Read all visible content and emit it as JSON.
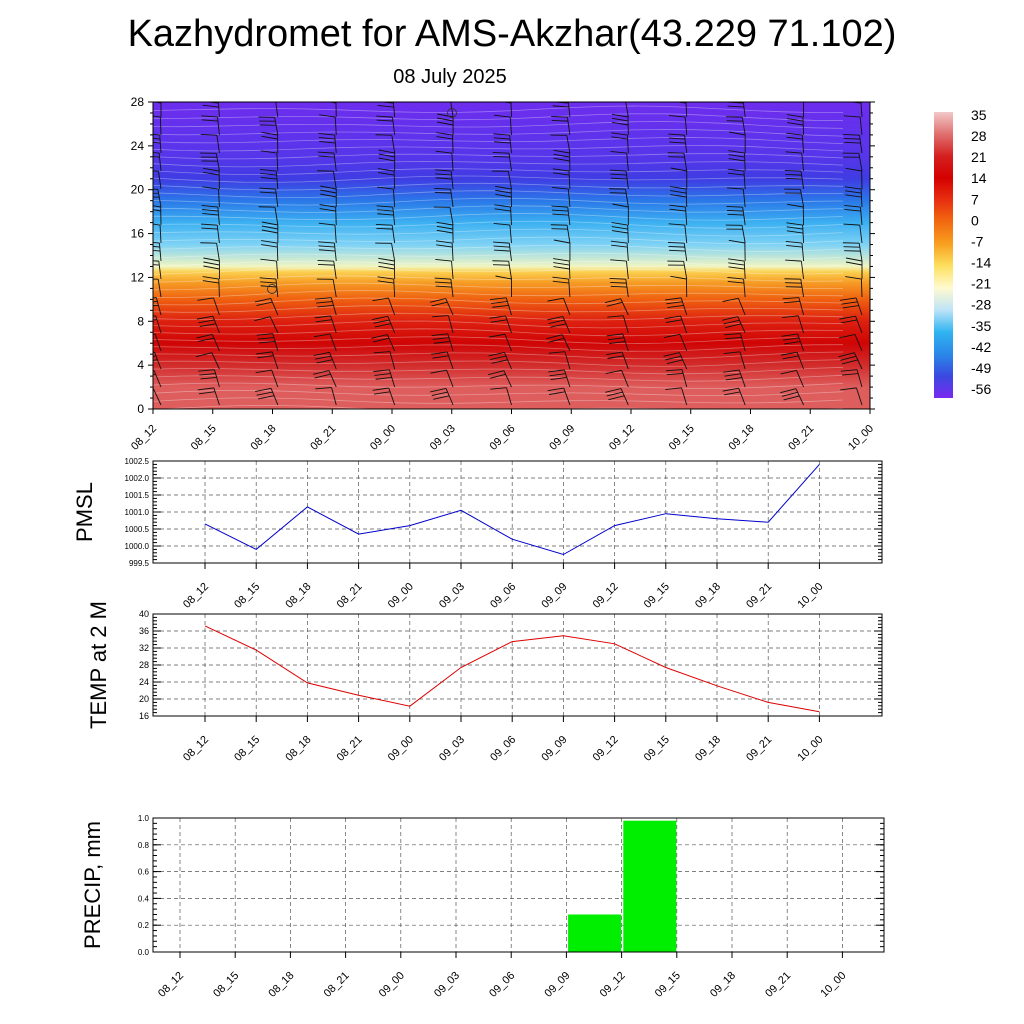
{
  "title": "Kazhydromet for AMS-Akzhar(43.229 71.102)",
  "date": "08 July 2025",
  "chart_data": [
    {
      "type": "heatmap",
      "title": "",
      "xlabel": "",
      "ylabel": "",
      "x_ticks": [
        "08_12",
        "08_15",
        "08_18",
        "08_21",
        "09_00",
        "09_03",
        "09_06",
        "09_09",
        "09_12",
        "09_15",
        "09_18",
        "09_21",
        "10_00"
      ],
      "y_ticks": [
        0,
        4,
        8,
        12,
        16,
        20,
        24,
        28
      ],
      "ylim": [
        0,
        28
      ],
      "colorbar_labels": [
        "35",
        "28",
        "21",
        "14",
        "7",
        "0",
        "-7",
        "-14",
        "-21",
        "-28",
        "-35",
        "-42",
        "-49",
        "-56"
      ],
      "colorbar_colors": [
        "#f2c8c8",
        "#e07070",
        "#d42020",
        "#d40000",
        "#e83010",
        "#f26a10",
        "#f8a020",
        "#fde060",
        "#fffad0",
        "#bde4f8",
        "#30b4f0",
        "#2a88e8",
        "#3a4ae0",
        "#7a28f0"
      ],
      "bands": [
        {
          "y": 0,
          "value": 28
        },
        {
          "y": 2,
          "value": 28
        },
        {
          "y": 4,
          "value": 25
        },
        {
          "y": 6,
          "value": 20
        },
        {
          "y": 8,
          "value": 14
        },
        {
          "y": 10,
          "value": 6
        },
        {
          "y": 11.5,
          "value": 0
        },
        {
          "y": 12.5,
          "value": -6
        },
        {
          "y": 13,
          "value": -14
        },
        {
          "y": 15,
          "value": -22
        },
        {
          "y": 17,
          "value": -30
        },
        {
          "y": 19,
          "value": -40
        },
        {
          "y": 21,
          "value": -50
        },
        {
          "y": 23,
          "value": -54
        },
        {
          "y": 28,
          "value": -58
        }
      ]
    },
    {
      "type": "line",
      "ylabel": "PMSL",
      "categories": [
        "08_12",
        "08_15",
        "08_18",
        "08_21",
        "09_00",
        "09_03",
        "09_06",
        "09_09",
        "09_12",
        "09_15",
        "09_18",
        "09_21",
        "10_00"
      ],
      "values": [
        1000.65,
        999.9,
        1001.15,
        1000.35,
        1000.6,
        1001.05,
        1000.2,
        999.75,
        1000.6,
        1000.95,
        1000.8,
        1000.7,
        1002.4
      ],
      "ylim": [
        999.5,
        1002.5
      ],
      "y_ticks": [
        "999.5",
        "1000.0",
        "1000.5",
        "1001.0",
        "1001.5",
        "1002.0",
        "1002.5"
      ],
      "color": "#0000cc",
      "grid": true
    },
    {
      "type": "line",
      "ylabel": "TEMP at 2 M",
      "categories": [
        "08_12",
        "08_15",
        "08_18",
        "08_21",
        "09_00",
        "09_03",
        "09_06",
        "09_09",
        "09_12",
        "09_15",
        "09_18",
        "09_21",
        "10_00"
      ],
      "values": [
        37.2,
        31.5,
        23.8,
        20.9,
        18.3,
        27.4,
        33.5,
        34.9,
        33.0,
        27.4,
        23.1,
        19.2,
        17.0
      ],
      "ylim": [
        16,
        40
      ],
      "y_ticks": [
        "16",
        "20",
        "24",
        "28",
        "32",
        "36",
        "40"
      ],
      "color": "#dd0000",
      "grid": true
    },
    {
      "type": "bar",
      "ylabel": "PRECIP, mm",
      "categories": [
        "08_12",
        "08_15",
        "08_18",
        "08_21",
        "09_00",
        "09_03",
        "09_06",
        "09_09",
        "09_12",
        "09_15",
        "09_18",
        "09_21",
        "10_00"
      ],
      "values": [
        0,
        0,
        0,
        0,
        0,
        0,
        0,
        0,
        0.28,
        0.98,
        0,
        0,
        0
      ],
      "ylim": [
        0,
        1.0
      ],
      "y_ticks": [
        "0.0",
        "0.2",
        "0.4",
        "0.6",
        "0.8",
        "1.0"
      ],
      "color": "#00ee00",
      "grid": true
    }
  ]
}
